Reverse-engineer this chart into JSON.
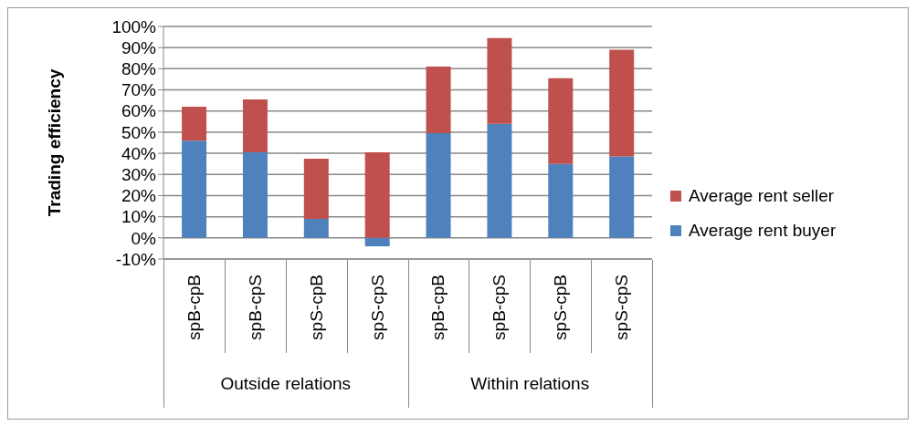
{
  "chart_data": {
    "type": "bar",
    "stacked": true,
    "ylabel": "Trading efficiency",
    "categories": [
      "spB-cpB",
      "spB-cpS",
      "spS-cpB",
      "spS-cpS",
      "spB-cpB",
      "spB-cpS",
      "spS-cpB",
      "spS-cpS"
    ],
    "series": [
      {
        "name": "Average rent buyer",
        "color": "#4f81bd",
        "values": [
          46,
          40.5,
          9,
          -4,
          49.5,
          54,
          35,
          38.5
        ]
      },
      {
        "name": "Average rent seller",
        "color": "#c0504d",
        "values": [
          16,
          25,
          28.5,
          40.5,
          31.5,
          40.5,
          40.5,
          50.5
        ]
      }
    ],
    "annotations": [
      "Outside relations",
      "Within relations"
    ],
    "ylim": [
      -10,
      100
    ],
    "yticks": [
      {
        "value": -10,
        "label": "-10%"
      },
      {
        "value": 0,
        "label": "0%"
      },
      {
        "value": 10,
        "label": "10%"
      },
      {
        "value": 20,
        "label": "20%"
      },
      {
        "value": 30,
        "label": "30%"
      },
      {
        "value": 40,
        "label": "40%"
      },
      {
        "value": 50,
        "label": "50%"
      },
      {
        "value": 60,
        "label": "60%"
      },
      {
        "value": 70,
        "label": "70%"
      },
      {
        "value": 80,
        "label": "80%"
      },
      {
        "value": 90,
        "label": "90%"
      },
      {
        "value": 100,
        "label": "100%"
      }
    ],
    "grid": "y",
    "legend": "right"
  }
}
